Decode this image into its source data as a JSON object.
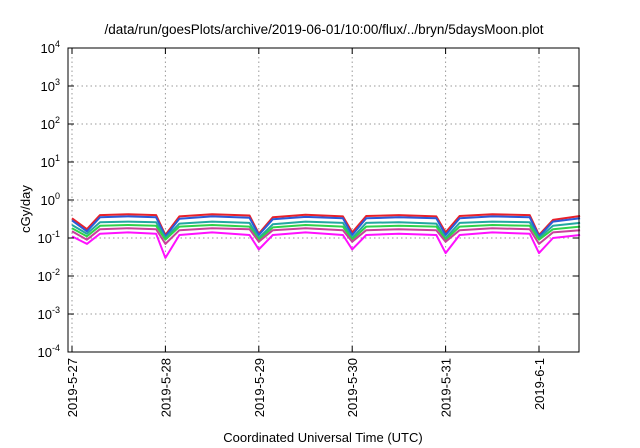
{
  "chart_data": {
    "type": "line",
    "title": "/data/run/goesPlots/archive/2019-06-01/10:00/flux/../bryn/5daysMoon.plot",
    "xlabel": "Coordinated Universal Time (UTC)",
    "ylabel": "cGy/day",
    "yscale": "log",
    "ylim": [
      0.0001,
      10000
    ],
    "xlim": [
      0,
      5.44
    ],
    "grid": true,
    "y_ticks": [
      {
        "value": 0.0001,
        "base": "10",
        "exp": "-4"
      },
      {
        "value": 0.001,
        "base": "10",
        "exp": "-3"
      },
      {
        "value": 0.01,
        "base": "10",
        "exp": "-2"
      },
      {
        "value": 0.1,
        "base": "10",
        "exp": "-1"
      },
      {
        "value": 1,
        "base": "10",
        "exp": "0"
      },
      {
        "value": 10,
        "base": "10",
        "exp": "1"
      },
      {
        "value": 100,
        "base": "10",
        "exp": "2"
      },
      {
        "value": 1000,
        "base": "10",
        "exp": "3"
      },
      {
        "value": 10000,
        "base": "10",
        "exp": "4"
      }
    ],
    "x_ticks": [
      {
        "value": 0,
        "label": "2019-5-27"
      },
      {
        "value": 1,
        "label": "2019-5-28"
      },
      {
        "value": 2,
        "label": "2019-5-29"
      },
      {
        "value": 3,
        "label": "2019-5-30"
      },
      {
        "value": 4,
        "label": "2019-5-31"
      },
      {
        "value": 5,
        "label": "2019-6-1"
      }
    ],
    "x": [
      0.0,
      0.16,
      0.3,
      0.6,
      0.9,
      1.0,
      1.15,
      1.5,
      1.9,
      2.0,
      2.15,
      2.5,
      2.9,
      3.0,
      3.15,
      3.5,
      3.9,
      4.0,
      4.15,
      4.5,
      4.9,
      5.0,
      5.15,
      5.44
    ],
    "series": [
      {
        "color": "#e8202a",
        "values": [
          0.33,
          0.17,
          0.4,
          0.42,
          0.4,
          0.12,
          0.37,
          0.42,
          0.39,
          0.13,
          0.35,
          0.41,
          0.37,
          0.14,
          0.38,
          0.4,
          0.37,
          0.14,
          0.38,
          0.42,
          0.4,
          0.12,
          0.3,
          0.38
        ]
      },
      {
        "color": "#2b5ad8",
        "values": [
          0.29,
          0.15,
          0.35,
          0.37,
          0.35,
          0.11,
          0.32,
          0.37,
          0.34,
          0.12,
          0.31,
          0.36,
          0.33,
          0.12,
          0.33,
          0.35,
          0.33,
          0.12,
          0.33,
          0.37,
          0.35,
          0.11,
          0.27,
          0.33
        ]
      },
      {
        "color": "#22a8a0",
        "values": [
          0.22,
          0.13,
          0.26,
          0.27,
          0.26,
          0.1,
          0.24,
          0.27,
          0.25,
          0.1,
          0.23,
          0.27,
          0.25,
          0.1,
          0.25,
          0.26,
          0.24,
          0.1,
          0.25,
          0.27,
          0.26,
          0.1,
          0.21,
          0.25
        ]
      },
      {
        "color": "#2fd24a",
        "values": [
          0.18,
          0.11,
          0.21,
          0.22,
          0.21,
          0.09,
          0.2,
          0.22,
          0.2,
          0.09,
          0.19,
          0.22,
          0.2,
          0.09,
          0.2,
          0.21,
          0.2,
          0.09,
          0.2,
          0.22,
          0.21,
          0.09,
          0.17,
          0.2
        ]
      },
      {
        "color": "#c8409a",
        "values": [
          0.15,
          0.09,
          0.17,
          0.18,
          0.17,
          0.07,
          0.16,
          0.18,
          0.17,
          0.08,
          0.16,
          0.18,
          0.16,
          0.08,
          0.16,
          0.17,
          0.16,
          0.08,
          0.16,
          0.18,
          0.17,
          0.07,
          0.14,
          0.16
        ]
      },
      {
        "color": "#ff10ff",
        "values": [
          0.11,
          0.07,
          0.13,
          0.14,
          0.13,
          0.03,
          0.12,
          0.14,
          0.12,
          0.05,
          0.12,
          0.14,
          0.12,
          0.05,
          0.12,
          0.13,
          0.12,
          0.04,
          0.12,
          0.14,
          0.13,
          0.04,
          0.1,
          0.12
        ]
      }
    ]
  }
}
